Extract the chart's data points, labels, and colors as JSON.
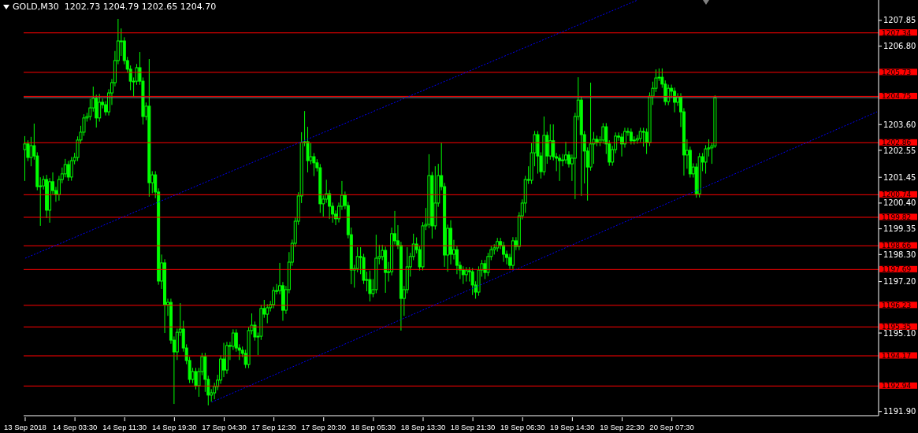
{
  "chart_data": {
    "type": "candlestick",
    "title": "GOLD,M30  1202.73 1204.79 1202.65 1204.70",
    "categories": [
      "13 Sep 2018",
      null,
      null,
      null,
      null,
      null,
      null,
      null,
      null,
      null,
      null,
      null,
      null,
      null,
      null,
      null,
      "14 Sep 03:30",
      null,
      null,
      null,
      null,
      null,
      null,
      null,
      null,
      null,
      null,
      null,
      null,
      null,
      null,
      null,
      "14 Sep 11:30",
      null,
      null,
      null,
      null,
      null,
      null,
      null,
      null,
      null,
      null,
      null,
      null,
      null,
      null,
      null,
      "14 Sep 19:30",
      null,
      null,
      null,
      null,
      null,
      null,
      null,
      null,
      null,
      null,
      null,
      null,
      null,
      null,
      null,
      "17 Sep 04:30",
      null,
      null,
      null,
      null,
      null,
      null,
      null,
      null,
      null,
      null,
      null,
      null,
      null,
      null,
      null,
      "17 Sep 12:30",
      null,
      null,
      null,
      null,
      null,
      null,
      null,
      null,
      null,
      null,
      null,
      null,
      null,
      null,
      null,
      "17 Sep 20:30",
      null,
      null,
      null,
      null,
      null,
      null,
      null,
      null,
      null,
      null,
      null,
      null,
      null,
      null,
      null,
      "18 Sep 05:30",
      null,
      null,
      null,
      null,
      null,
      null,
      null,
      null,
      null,
      null,
      null,
      null,
      null,
      null,
      null,
      "18 Sep 13:30",
      null,
      null,
      null,
      null,
      null,
      null,
      null,
      null,
      null,
      null,
      null,
      null,
      null,
      null,
      null,
      "18 Sep 21:30",
      null,
      null,
      null,
      null,
      null,
      null,
      null,
      null,
      null,
      null,
      null,
      null,
      null,
      null,
      null,
      "19 Sep 06:30",
      null,
      null,
      null,
      null,
      null,
      null,
      null,
      null,
      null,
      null,
      null,
      null,
      null,
      null,
      null,
      "19 Sep 14:30",
      null,
      null,
      null,
      null,
      null,
      null,
      null,
      null,
      null,
      null,
      null,
      null,
      null,
      null,
      null,
      "19 Sep 22:30",
      null,
      null,
      null,
      null,
      null,
      null,
      null,
      null,
      null,
      null,
      null,
      null,
      null,
      null,
      null,
      "20 Sep 07:30",
      null,
      null,
      null,
      null,
      null,
      null,
      null,
      null,
      null,
      null,
      null,
      null,
      null,
      null,
      null,
      null,
      null,
      null,
      null,
      null,
      null,
      null,
      null,
      null,
      null,
      null,
      null,
      null,
      null,
      null,
      null,
      null,
      null,
      null,
      null,
      null,
      null,
      null,
      null,
      null,
      null,
      null,
      null,
      null,
      null,
      null,
      null,
      null,
      null,
      null,
      null,
      null,
      null,
      null,
      null,
      null,
      null,
      null,
      null,
      null,
      null,
      null,
      null,
      null,
      null,
      null
    ],
    "series": [
      {
        "color": "#00ff00",
        "ohlc": [
          [
            1202.58,
            1203.13,
            1201.3,
            1202.81
          ],
          [
            1202.81,
            1202.96,
            1202.11,
            1202.26
          ],
          [
            1202.26,
            1203.1,
            1201.9,
            1202.74
          ],
          [
            1202.74,
            1203.64,
            1202.17,
            1202.32
          ],
          [
            1202.32,
            1202.47,
            1200.92,
            1201.07
          ],
          [
            1201.07,
            1201.45,
            1199.47,
            1201.1
          ],
          [
            1201.1,
            1201.51,
            1200.95,
            1201.36
          ],
          [
            1201.36,
            1201.55,
            1199.79,
            1200.11
          ],
          [
            1200.11,
            1201.42,
            1199.6,
            1201.27
          ],
          [
            1201.27,
            1201.65,
            1200.76,
            1200.91
          ],
          [
            1200.91,
            1201.06,
            1200.45,
            1200.75
          ],
          [
            1200.75,
            1201.51,
            1200.5,
            1201.36
          ],
          [
            1201.36,
            1201.85,
            1201.21,
            1201.59
          ],
          [
            1201.59,
            1202.2,
            1201.45,
            1201.97
          ],
          [
            1201.97,
            1202.12,
            1201.3,
            1201.46
          ],
          [
            1201.46,
            1202.28,
            1201.31,
            1202.13
          ],
          [
            1202.13,
            1202.45,
            1201.98,
            1202.26
          ],
          [
            1202.26,
            1203.12,
            1202.11,
            1202.97
          ],
          [
            1202.97,
            1203.55,
            1202.82,
            1203.29
          ],
          [
            1203.29,
            1204.02,
            1203.14,
            1203.87
          ],
          [
            1203.87,
            1204.08,
            1203.72,
            1203.93
          ],
          [
            1203.93,
            1204.65,
            1203.78,
            1204.28
          ],
          [
            1204.28,
            1205.15,
            1204.13,
            1204.67
          ],
          [
            1204.67,
            1204.82,
            1203.48,
            1203.87
          ],
          [
            1203.87,
            1204.85,
            1203.72,
            1204.51
          ],
          [
            1204.51,
            1204.66,
            1204.26,
            1204.41
          ],
          [
            1204.41,
            1204.56,
            1203.97,
            1204.12
          ],
          [
            1204.12,
            1205.04,
            1203.97,
            1204.89
          ],
          [
            1204.89,
            1205.46,
            1204.4,
            1205.31
          ],
          [
            1205.31,
            1206.6,
            1205.16,
            1206.21
          ],
          [
            1206.21,
            1207.91,
            1206.06,
            1207.01
          ],
          [
            1207.01,
            1207.52,
            1206.4,
            1207.01
          ],
          [
            1207.01,
            1207.16,
            1206.06,
            1206.21
          ],
          [
            1206.21,
            1206.36,
            1205.71,
            1205.86
          ],
          [
            1205.86,
            1206.01,
            1205.0,
            1205.37
          ],
          [
            1205.37,
            1205.52,
            1204.73,
            1205.37
          ],
          [
            1205.37,
            1206.07,
            1205.22,
            1205.92
          ],
          [
            1205.92,
            1206.56,
            1205.22,
            1205.37
          ],
          [
            1205.37,
            1205.52,
            1203.6,
            1203.93
          ],
          [
            1203.93,
            1204.5,
            1203.78,
            1204.35
          ],
          [
            1204.35,
            1206.27,
            1200.66,
            1201.23
          ],
          [
            1201.23,
            1201.7,
            1200.8,
            1201.55
          ],
          [
            1201.55,
            1201.7,
            1200.6,
            1200.85
          ],
          [
            1200.85,
            1201.0,
            1197.07,
            1197.22
          ],
          [
            1197.22,
            1198.3,
            1196.9,
            1197.96
          ],
          [
            1197.96,
            1198.11,
            1195.1,
            1196.26
          ],
          [
            1196.26,
            1196.5,
            1195.8,
            1196.35
          ],
          [
            1196.35,
            1196.5,
            1194.66,
            1194.81
          ],
          [
            1194.81,
            1194.96,
            1192.21,
            1194.33
          ],
          [
            1194.33,
            1195.28,
            1194.0,
            1195.13
          ],
          [
            1195.13,
            1196.32,
            1194.98,
            1195.26
          ],
          [
            1195.26,
            1195.6,
            1194.34,
            1194.49
          ],
          [
            1194.49,
            1194.64,
            1193.83,
            1193.98
          ],
          [
            1193.98,
            1194.13,
            1193.06,
            1193.21
          ],
          [
            1193.21,
            1193.68,
            1193.06,
            1193.53
          ],
          [
            1193.53,
            1193.68,
            1192.8,
            1192.95
          ],
          [
            1192.95,
            1193.68,
            1192.5,
            1193.53
          ],
          [
            1193.53,
            1194.29,
            1193.38,
            1194.14
          ],
          [
            1194.14,
            1194.29,
            1192.7,
            1193.21
          ],
          [
            1193.21,
            1193.36,
            1192.15,
            1192.57
          ],
          [
            1192.57,
            1192.81,
            1192.3,
            1192.66
          ],
          [
            1192.66,
            1193.07,
            1192.4,
            1192.92
          ],
          [
            1192.92,
            1193.4,
            1192.77,
            1193.18
          ],
          [
            1193.18,
            1194.19,
            1193.03,
            1194.04
          ],
          [
            1194.04,
            1194.7,
            1193.3,
            1193.59
          ],
          [
            1193.59,
            1194.74,
            1193.44,
            1194.59
          ],
          [
            1194.59,
            1194.74,
            1194.0,
            1194.56
          ],
          [
            1194.56,
            1195.25,
            1194.41,
            1195.1
          ],
          [
            1195.1,
            1195.25,
            1194.34,
            1194.49
          ],
          [
            1194.49,
            1194.64,
            1194.0,
            1194.4
          ],
          [
            1194.4,
            1194.55,
            1194.12,
            1194.27
          ],
          [
            1194.27,
            1194.42,
            1193.67,
            1193.82
          ],
          [
            1193.82,
            1195.35,
            1193.67,
            1195.2
          ],
          [
            1195.2,
            1195.9,
            1195.05,
            1195.42
          ],
          [
            1195.42,
            1195.57,
            1194.79,
            1194.94
          ],
          [
            1194.94,
            1195.12,
            1194.2,
            1194.97
          ],
          [
            1194.97,
            1196.25,
            1194.82,
            1196.1
          ],
          [
            1196.1,
            1196.45,
            1195.72,
            1195.87
          ],
          [
            1195.87,
            1196.28,
            1195.5,
            1196.13
          ],
          [
            1196.13,
            1196.41,
            1195.98,
            1196.26
          ],
          [
            1196.26,
            1196.98,
            1196.11,
            1196.83
          ],
          [
            1196.83,
            1197.1,
            1196.68,
            1196.83
          ],
          [
            1196.83,
            1197.96,
            1196.68,
            1197.03
          ],
          [
            1197.03,
            1197.18,
            1195.6,
            1196.03
          ],
          [
            1196.03,
            1197.02,
            1195.88,
            1196.87
          ],
          [
            1196.87,
            1198.4,
            1196.72,
            1197.99
          ],
          [
            1197.99,
            1198.91,
            1197.84,
            1198.76
          ],
          [
            1198.76,
            1199.81,
            1198.61,
            1199.66
          ],
          [
            1199.66,
            1200.84,
            1199.51,
            1200.69
          ],
          [
            1200.69,
            1203.29,
            1200.4,
            1202.87
          ],
          [
            1202.87,
            1204.15,
            1202.72,
            1202.9
          ],
          [
            1202.9,
            1203.51,
            1201.65,
            1202.13
          ],
          [
            1202.13,
            1202.85,
            1201.98,
            1202.29
          ],
          [
            1202.29,
            1202.44,
            1201.5,
            1202.04
          ],
          [
            1202.04,
            1202.19,
            1201.69,
            1201.84
          ],
          [
            1201.84,
            1201.99,
            1200.0,
            1200.37
          ],
          [
            1200.37,
            1200.71,
            1199.85,
            1200.56
          ],
          [
            1200.56,
            1201.35,
            1200.41,
            1200.78
          ],
          [
            1200.78,
            1200.93,
            1199.75,
            1200.27
          ],
          [
            1200.27,
            1200.42,
            1199.6,
            1199.95
          ],
          [
            1199.95,
            1200.1,
            1199.5,
            1199.76
          ],
          [
            1199.76,
            1200.42,
            1199.61,
            1200.27
          ],
          [
            1200.27,
            1201.3,
            1200.12,
            1200.72
          ],
          [
            1200.72,
            1200.87,
            1200.15,
            1200.3
          ],
          [
            1200.3,
            1200.45,
            1198.96,
            1199.11
          ],
          [
            1199.11,
            1199.4,
            1197.09,
            1197.67
          ],
          [
            1197.67,
            1197.88,
            1196.95,
            1197.73
          ],
          [
            1197.73,
            1198.6,
            1197.58,
            1198.22
          ],
          [
            1198.22,
            1198.6,
            1197.5,
            1198.18
          ],
          [
            1198.18,
            1198.33,
            1197.1,
            1197.25
          ],
          [
            1197.25,
            1197.6,
            1196.8,
            1197.28
          ],
          [
            1197.28,
            1197.65,
            1196.39,
            1196.71
          ],
          [
            1196.71,
            1197.3,
            1196.56,
            1196.87
          ],
          [
            1196.87,
            1199.11,
            1196.72,
            1198.15
          ],
          [
            1198.15,
            1198.7,
            1197.9,
            1198.22
          ],
          [
            1198.22,
            1198.7,
            1198.07,
            1198.47
          ],
          [
            1198.47,
            1198.62,
            1196.74,
            1197.57
          ],
          [
            1197.57,
            1198.0,
            1197.2,
            1197.6
          ],
          [
            1197.6,
            1199.4,
            1197.45,
            1199.15
          ],
          [
            1199.15,
            1200.08,
            1198.71,
            1198.86
          ],
          [
            1198.86,
            1199.5,
            1198.52,
            1198.67
          ],
          [
            1198.67,
            1198.82,
            1195.2,
            1196.51
          ],
          [
            1196.51,
            1197.02,
            1195.8,
            1196.87
          ],
          [
            1196.87,
            1198.6,
            1196.72,
            1197.8
          ],
          [
            1197.8,
            1198.37,
            1197.4,
            1198.22
          ],
          [
            1198.22,
            1199.15,
            1198.07,
            1198.73
          ],
          [
            1198.73,
            1199.0,
            1198.35,
            1198.5
          ],
          [
            1198.5,
            1198.65,
            1197.65,
            1197.8
          ],
          [
            1197.8,
            1199.62,
            1197.65,
            1199.47
          ],
          [
            1199.47,
            1200.2,
            1199.3,
            1199.53
          ],
          [
            1199.53,
            1202.39,
            1199.38,
            1201.52
          ],
          [
            1201.52,
            1201.67,
            1198.95,
            1199.47
          ],
          [
            1199.47,
            1201.9,
            1199.32,
            1200.4
          ],
          [
            1200.4,
            1202.0,
            1200.25,
            1201.52
          ],
          [
            1201.52,
            1202.87,
            1200.92,
            1201.07
          ],
          [
            1201.07,
            1201.22,
            1197.8,
            1198.28
          ],
          [
            1198.28,
            1199.52,
            1197.6,
            1199.37
          ],
          [
            1199.37,
            1199.7,
            1197.9,
            1198.31
          ],
          [
            1198.31,
            1198.9,
            1198.1,
            1198.5
          ],
          [
            1198.5,
            1198.65,
            1197.5,
            1197.86
          ],
          [
            1197.86,
            1198.01,
            1197.3,
            1197.67
          ],
          [
            1197.67,
            1197.82,
            1197.1,
            1197.48
          ],
          [
            1197.48,
            1197.79,
            1197.2,
            1197.64
          ],
          [
            1197.64,
            1197.79,
            1197.2,
            1197.6
          ],
          [
            1197.6,
            1197.75,
            1196.65,
            1197.06
          ],
          [
            1197.06,
            1197.21,
            1196.5,
            1196.77
          ],
          [
            1196.77,
            1197.82,
            1196.62,
            1197.67
          ],
          [
            1197.67,
            1198.08,
            1197.4,
            1197.93
          ],
          [
            1197.93,
            1198.08,
            1197.3,
            1197.57
          ],
          [
            1197.57,
            1198.37,
            1197.42,
            1198.22
          ],
          [
            1198.22,
            1198.65,
            1198.07,
            1198.5
          ],
          [
            1198.5,
            1198.72,
            1198.3,
            1198.57
          ],
          [
            1198.57,
            1198.98,
            1198.42,
            1198.83
          ],
          [
            1198.83,
            1198.98,
            1198.52,
            1198.67
          ],
          [
            1198.67,
            1198.82,
            1198.0,
            1198.31
          ],
          [
            1198.31,
            1198.46,
            1197.9,
            1198.18
          ],
          [
            1198.18,
            1198.33,
            1197.71,
            1197.86
          ],
          [
            1197.86,
            1199.01,
            1197.71,
            1198.86
          ],
          [
            1198.86,
            1199.01,
            1198.48,
            1198.63
          ],
          [
            1198.63,
            1200.03,
            1198.48,
            1199.88
          ],
          [
            1199.88,
            1200.55,
            1199.73,
            1200.4
          ],
          [
            1200.4,
            1201.51,
            1200.0,
            1201.36
          ],
          [
            1201.36,
            1201.9,
            1201.18,
            1201.33
          ],
          [
            1201.33,
            1202.85,
            1201.18,
            1202.45
          ],
          [
            1202.45,
            1203.34,
            1201.9,
            1203.19
          ],
          [
            1203.19,
            1203.34,
            1201.6,
            1202.32
          ],
          [
            1202.32,
            1202.47,
            1201.4,
            1201.68
          ],
          [
            1201.68,
            1203.93,
            1201.53,
            1203.16
          ],
          [
            1203.16,
            1203.31,
            1202.0,
            1202.32
          ],
          [
            1202.32,
            1203.61,
            1202.17,
            1202.94
          ],
          [
            1202.94,
            1203.61,
            1202.14,
            1202.29
          ],
          [
            1202.29,
            1202.44,
            1201.7,
            1202.23
          ],
          [
            1202.23,
            1202.38,
            1201.3,
            1202.13
          ],
          [
            1202.13,
            1202.4,
            1201.9,
            1202.16
          ],
          [
            1202.16,
            1202.9,
            1202.01,
            1202.36
          ],
          [
            1202.36,
            1202.51,
            1201.85,
            1202.0
          ],
          [
            1202.0,
            1202.38,
            1201.3,
            1202.23
          ],
          [
            1202.23,
            1204.08,
            1200.56,
            1203.93
          ],
          [
            1203.93,
            1205.53,
            1203.78,
            1204.6
          ],
          [
            1204.6,
            1204.75,
            1200.69,
            1203.19
          ],
          [
            1203.19,
            1203.34,
            1201.2,
            1202.52
          ],
          [
            1202.52,
            1202.67,
            1200.5,
            1201.87
          ],
          [
            1201.87,
            1205.31,
            1201.72,
            1202.81
          ],
          [
            1202.81,
            1203.3,
            1202.0,
            1203.0
          ],
          [
            1203.0,
            1203.15,
            1202.72,
            1202.87
          ],
          [
            1202.87,
            1203.12,
            1202.72,
            1202.97
          ],
          [
            1202.97,
            1203.66,
            1202.82,
            1203.51
          ],
          [
            1203.51,
            1203.66,
            1202.4,
            1202.81
          ],
          [
            1202.81,
            1202.96,
            1201.92,
            1202.07
          ],
          [
            1202.07,
            1202.73,
            1201.92,
            1202.58
          ],
          [
            1202.58,
            1203.28,
            1202.43,
            1203.13
          ],
          [
            1203.13,
            1203.28,
            1202.94,
            1203.09
          ],
          [
            1203.09,
            1203.24,
            1202.3,
            1202.81
          ],
          [
            1202.81,
            1203.47,
            1202.66,
            1203.32
          ],
          [
            1203.32,
            1203.47,
            1203.14,
            1203.29
          ],
          [
            1203.29,
            1203.44,
            1202.79,
            1202.94
          ],
          [
            1202.94,
            1203.12,
            1202.79,
            1202.97
          ],
          [
            1202.97,
            1203.18,
            1202.82,
            1203.03
          ],
          [
            1203.03,
            1203.47,
            1202.88,
            1203.32
          ],
          [
            1203.32,
            1203.47,
            1202.7,
            1203.29
          ],
          [
            1203.29,
            1203.44,
            1202.4,
            1202.87
          ],
          [
            1202.87,
            1204.91,
            1202.72,
            1204.76
          ],
          [
            1204.76,
            1205.35,
            1204.4,
            1205.08
          ],
          [
            1205.08,
            1205.85,
            1204.93,
            1205.5
          ],
          [
            1205.5,
            1205.89,
            1205.38,
            1205.53
          ],
          [
            1205.53,
            1205.89,
            1205.1,
            1205.25
          ],
          [
            1205.25,
            1205.4,
            1204.39,
            1204.54
          ],
          [
            1204.54,
            1205.23,
            1204.39,
            1205.08
          ],
          [
            1205.08,
            1205.23,
            1204.7,
            1204.96
          ],
          [
            1204.96,
            1205.11,
            1204.1,
            1204.51
          ],
          [
            1204.51,
            1204.88,
            1204.36,
            1204.73
          ],
          [
            1204.73,
            1204.88,
            1203.5,
            1204.12
          ],
          [
            1204.12,
            1204.27,
            1201.52,
            1202.36
          ],
          [
            1202.36,
            1203.0,
            1201.8,
            1202.55
          ],
          [
            1202.55,
            1202.7,
            1201.44,
            1201.59
          ],
          [
            1201.59,
            1202.02,
            1201.44,
            1201.87
          ],
          [
            1201.87,
            1202.02,
            1200.62,
            1200.78
          ],
          [
            1200.78,
            1202.44,
            1200.63,
            1202.29
          ],
          [
            1202.29,
            1202.44,
            1201.7,
            1202.07
          ],
          [
            1202.07,
            1202.76,
            1201.6,
            1202.61
          ],
          [
            1202.61,
            1203.0,
            1202.3,
            1202.65
          ],
          [
            1202.65,
            1202.86,
            1202.0,
            1202.73
          ],
          [
            1202.73,
            1204.79,
            1202.65,
            1204.7
          ],
          null,
          null,
          null,
          null,
          null,
          null,
          null,
          null,
          null,
          null,
          null,
          null,
          null,
          null,
          null,
          null,
          null,
          null,
          null,
          null,
          null,
          null,
          null,
          null,
          null,
          null,
          null,
          null,
          null,
          null,
          null,
          null,
          null,
          null,
          null,
          null,
          null,
          null,
          null,
          null,
          null,
          null,
          null,
          null,
          null,
          null,
          null,
          null,
          null,
          null,
          null,
          null
        ]
      },
      {
        "type": "line",
        "color": "#0000ff",
        "line_style": "dotted",
        "values": [
          1198.15,
          null,
          null,
          null,
          null,
          null,
          null,
          null,
          null,
          null,
          null,
          null,
          null,
          null,
          null,
          null,
          null,
          null,
          null,
          null,
          null,
          null,
          null,
          null,
          null,
          null,
          null,
          null,
          null,
          null,
          null,
          null,
          null,
          null,
          null,
          null,
          null,
          null,
          null,
          null,
          null,
          null,
          null,
          null,
          null,
          null,
          null,
          null,
          null,
          null,
          null,
          null,
          null,
          null,
          null,
          null,
          null,
          null,
          null,
          null,
          null,
          null,
          null,
          null,
          null,
          null,
          null,
          null,
          null,
          null,
          null,
          null,
          null,
          null,
          null,
          null,
          null,
          null,
          null,
          null,
          null,
          null,
          null,
          null,
          null,
          null,
          null,
          null,
          null,
          null,
          null,
          null,
          null,
          null,
          null,
          null,
          null,
          null,
          null,
          null,
          null,
          null,
          null,
          null,
          null,
          null,
          null,
          null,
          null,
          null,
          null,
          null,
          null,
          null,
          null,
          null,
          null,
          null,
          null,
          null,
          null,
          null,
          null,
          null,
          null,
          null,
          null,
          null,
          null,
          null,
          null,
          null,
          null,
          null,
          null,
          null,
          null,
          null,
          null,
          null,
          null,
          null,
          null,
          null,
          null,
          null,
          null,
          null,
          null,
          null,
          null,
          null,
          null,
          null,
          null,
          null,
          null,
          null,
          null,
          null,
          null,
          null,
          null,
          null,
          null,
          null,
          null,
          null,
          null,
          null,
          null,
          null,
          null,
          null,
          null,
          null,
          null,
          null,
          null,
          null,
          null,
          null,
          null,
          null,
          null,
          null,
          null,
          null,
          null,
          null,
          null,
          null,
          null,
          null,
          null,
          null,
          null,
          1208.68,
          null,
          null,
          null,
          null,
          null,
          null,
          null,
          null,
          null,
          null,
          null,
          null,
          null,
          null,
          null,
          null,
          null,
          null,
          null,
          null,
          null,
          null,
          null,
          null,
          null,
          null,
          null,
          null,
          null,
          null,
          null,
          null,
          null,
          null,
          null,
          null,
          null,
          null,
          null,
          null,
          null,
          null,
          null,
          null,
          null,
          null,
          null,
          null,
          null,
          null,
          null,
          null,
          null,
          null,
          null,
          null,
          null,
          null,
          null,
          null,
          null,
          null,
          null,
          null,
          null,
          null,
          null,
          null,
          null,
          null,
          null,
          null,
          null,
          null,
          null,
          null,
          null
        ]
      },
      {
        "type": "line",
        "color": "#0000ff",
        "line_style": "dotted",
        "values": [
          null,
          null,
          null,
          null,
          null,
          null,
          null,
          null,
          null,
          null,
          null,
          null,
          null,
          null,
          null,
          null,
          null,
          null,
          null,
          null,
          null,
          null,
          null,
          null,
          null,
          null,
          null,
          null,
          null,
          null,
          null,
          null,
          null,
          null,
          null,
          null,
          null,
          null,
          null,
          null,
          null,
          null,
          null,
          null,
          null,
          null,
          null,
          null,
          null,
          null,
          null,
          null,
          null,
          null,
          null,
          null,
          null,
          null,
          null,
          null,
          1192.28,
          null,
          null,
          null,
          null,
          null,
          null,
          null,
          null,
          null,
          null,
          null,
          null,
          null,
          null,
          null,
          null,
          null,
          null,
          null,
          null,
          null,
          null,
          null,
          null,
          null,
          null,
          null,
          null,
          null,
          null,
          null,
          null,
          null,
          null,
          null,
          null,
          null,
          null,
          null,
          null,
          null,
          null,
          null,
          null,
          null,
          null,
          null,
          null,
          null,
          null,
          null,
          null,
          null,
          null,
          null,
          null,
          null,
          null,
          null,
          null,
          null,
          null,
          null,
          null,
          null,
          null,
          null,
          null,
          null,
          null,
          null,
          null,
          null,
          null,
          null,
          null,
          null,
          null,
          null,
          null,
          null,
          null,
          null,
          null,
          null,
          null,
          null,
          null,
          null,
          null,
          null,
          null,
          null,
          null,
          null,
          null,
          null,
          null,
          null,
          null,
          null,
          null,
          null,
          null,
          null,
          null,
          null,
          null,
          null,
          null,
          null,
          null,
          null,
          null,
          null,
          null,
          null,
          null,
          null,
          null,
          null,
          null,
          null,
          null,
          null,
          null,
          null,
          null,
          null,
          null,
          null,
          null,
          null,
          null,
          null,
          null,
          null,
          null,
          null,
          null,
          null,
          null,
          null,
          null,
          null,
          null,
          null,
          null,
          null,
          null,
          null,
          null,
          null,
          null,
          null,
          null,
          null,
          null,
          null,
          null,
          null,
          null,
          null,
          null,
          null,
          null,
          null,
          null,
          null,
          null,
          null,
          null,
          null,
          null,
          null,
          null,
          null,
          null,
          null,
          null,
          null,
          null,
          null,
          null,
          null,
          null,
          null,
          null,
          null,
          null,
          null,
          null,
          null,
          null,
          null,
          null,
          null,
          null,
          null,
          null,
          null,
          null,
          null,
          null,
          null,
          null,
          null,
          null,
          null,
          null,
          null,
          null,
          null,
          1204.12
        ]
      }
    ],
    "ylim": [
      1191.73,
      1208.68
    ],
    "yticks": [
      {
        "value": 1191.9,
        "label": "1191.90"
      },
      {
        "value": 1195.1,
        "label": "1195.10"
      },
      {
        "value": 1197.2,
        "label": "1197.20"
      },
      {
        "value": 1198.3,
        "label": "1198.30"
      },
      1199.35,
      {
        "value": 1200.4,
        "label": "1200.40"
      },
      1201.45,
      1202.55,
      {
        "value": 1203.6,
        "label": "1203.60"
      },
      {
        "value": 1206.8,
        "label": "1206.80"
      },
      1207.85
    ],
    "ref_lines": [
      {
        "axis": "y",
        "value": 1207.34,
        "label": "1207.34",
        "color": "#ff0000"
      },
      {
        "axis": "y",
        "value": 1205.73,
        "label": "1205.73",
        "color": "#ff0000"
      },
      {
        "axis": "y",
        "value": 1204.7,
        "color": "#808080"
      },
      {
        "axis": "y",
        "value": 1204.75,
        "label": "1204.75",
        "color": "#ff0000"
      },
      {
        "axis": "y",
        "value": 1202.86,
        "label": "1202.86",
        "color": "#ff0000"
      },
      {
        "axis": "y",
        "value": 1200.74,
        "label": "1200.74",
        "color": "#ff0000"
      },
      {
        "axis": "y",
        "value": 1199.82,
        "label": "1199.82",
        "color": "#ff0000"
      },
      {
        "axis": "y",
        "value": 1198.66,
        "label": "1198.66",
        "color": "#ff0000"
      },
      {
        "axis": "y",
        "value": 1197.69,
        "label": "1197.69",
        "color": "#ff0000"
      },
      {
        "axis": "y",
        "value": 1196.23,
        "label": "1196.23",
        "color": "#ff0000"
      },
      {
        "axis": "y",
        "value": 1195.35,
        "label": "1195.35",
        "color": "#ff0000"
      },
      {
        "axis": "y",
        "value": 1194.17,
        "label": "1194.17",
        "color": "#ff0000"
      },
      {
        "axis": "y",
        "value": 1192.94,
        "label": "1192.94",
        "color": "#ff0000"
      }
    ]
  }
}
